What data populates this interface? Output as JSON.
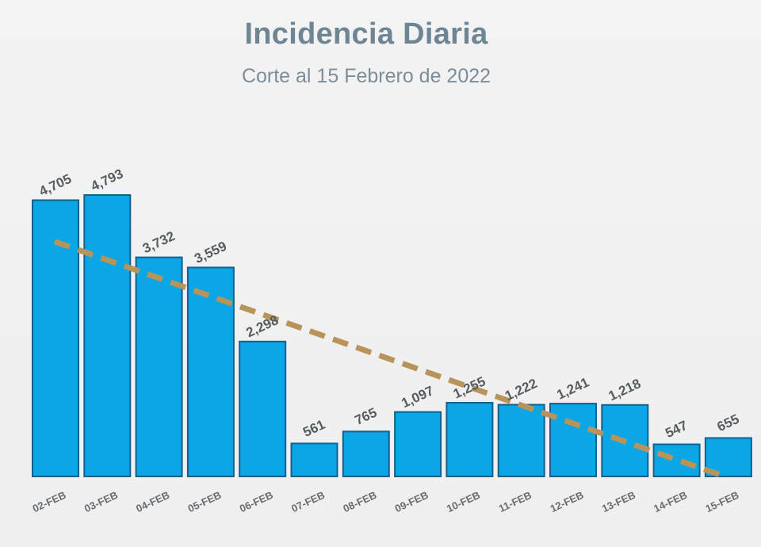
{
  "header": {
    "title": "Incidencia Diaria",
    "subtitle": "Corte al 15 Febrero de 2022"
  },
  "colors": {
    "bar_fill": "#0aa6e6",
    "bar_outline": "#15608c",
    "trendline": "#b8935a",
    "title": "#6e8694",
    "background": "#efefef"
  },
  "chart_data": {
    "type": "bar",
    "title": "Incidencia Diaria",
    "subtitle": "Corte al 15 Febrero de 2022",
    "xlabel": "",
    "ylabel": "",
    "categories": [
      "02-FEB",
      "03-FEB",
      "04-FEB",
      "05-FEB",
      "06-FEB",
      "07-FEB",
      "08-FEB",
      "09-FEB",
      "10-FEB",
      "11-FEB",
      "12-FEB",
      "13-FEB",
      "14-FEB",
      "15-FEB"
    ],
    "values": [
      4705,
      4793,
      3732,
      3559,
      2298,
      561,
      765,
      1097,
      1255,
      1222,
      1241,
      1218,
      547,
      655
    ],
    "value_labels": [
      "4,705",
      "4,793",
      "3,732",
      "3,559",
      "2,298",
      "561",
      "765",
      "1,097",
      "1,255",
      "1,222",
      "1,241",
      "1,218",
      "547",
      "655"
    ],
    "ylim": [
      0,
      4793
    ],
    "grid": false,
    "legend": "none",
    "trendline": {
      "style": "dashed",
      "start": {
        "x": "02-FEB",
        "y": 4000
      },
      "end": {
        "x": "15-FEB",
        "y": 0
      }
    }
  }
}
